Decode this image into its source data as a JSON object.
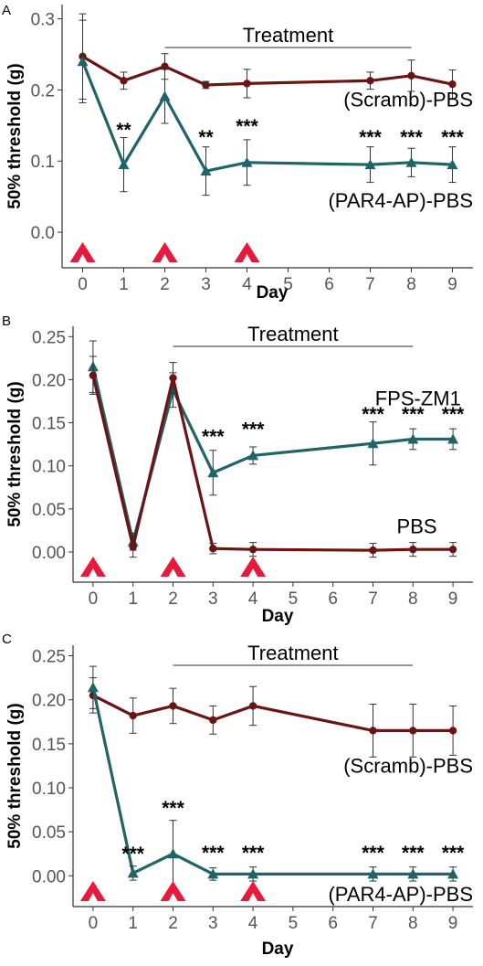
{
  "colors": {
    "series_dark_red": "#6b1414",
    "series_teal": "#1f6468",
    "arrow_red": "#e8193c",
    "axis": "#333333",
    "tick_text": "#555555"
  },
  "chart_data": [
    {
      "panel": "A",
      "type": "line",
      "xlabel": "Day",
      "ylabel": "50% threshold (g)",
      "x_ticks": [
        0,
        1,
        2,
        3,
        4,
        5,
        6,
        7,
        8,
        9
      ],
      "y_ticks": [
        0.0,
        0.1,
        0.2,
        0.3
      ],
      "y_tick_labels": [
        "0.0",
        "0.1",
        "0.2",
        "0.3"
      ],
      "xlim": [
        -0.5,
        9.5
      ],
      "ylim": [
        -0.05,
        0.32
      ],
      "treatment": {
        "label": "Treatment",
        "from": 2,
        "to": 8
      },
      "injection_days": [
        0,
        2,
        4
      ],
      "series": [
        {
          "name": "(Scramb)-PBS",
          "color": "#6b1414",
          "marker": "circle",
          "x": [
            0,
            1,
            2,
            3,
            4,
            7,
            8,
            9
          ],
          "y": [
            0.247,
            0.213,
            0.233,
            0.207,
            0.209,
            0.213,
            0.22,
            0.208
          ],
          "err": [
            0.06,
            0.012,
            0.018,
            0.005,
            0.02,
            0.012,
            0.022,
            0.02
          ],
          "label": "(Scramb)-PBS",
          "label_x": 9.5,
          "label_y": 0.177,
          "label_anchor": "end"
        },
        {
          "name": "(PAR4-AP)-PBS",
          "color": "#1f6468",
          "marker": "triangle",
          "x": [
            0,
            1,
            2,
            3,
            4,
            7,
            8,
            9
          ],
          "y": [
            0.24,
            0.095,
            0.191,
            0.086,
            0.098,
            0.095,
            0.098,
            0.095
          ],
          "err": [
            0.058,
            0.038,
            0.038,
            0.034,
            0.032,
            0.025,
            0.02,
            0.025
          ],
          "label": "(PAR4-AP)-PBS",
          "label_x": 9.5,
          "label_y": 0.035,
          "label_anchor": "end"
        }
      ],
      "annotations": [
        {
          "text": "**",
          "x": 1,
          "y": 0.135
        },
        {
          "text": "**",
          "x": 3,
          "y": 0.125
        },
        {
          "text": "***",
          "x": 4,
          "y": 0.14
        },
        {
          "text": "***",
          "x": 7,
          "y": 0.125
        },
        {
          "text": "***",
          "x": 8,
          "y": 0.125
        },
        {
          "text": "***",
          "x": 9,
          "y": 0.125
        }
      ]
    },
    {
      "panel": "B",
      "type": "line",
      "xlabel": "Day",
      "ylabel": "50% threshold (g)",
      "x_ticks": [
        0,
        1,
        2,
        3,
        4,
        5,
        6,
        7,
        8,
        9
      ],
      "y_ticks": [
        0.0,
        0.05,
        0.1,
        0.15,
        0.2,
        0.25
      ],
      "y_tick_labels": [
        "0.00",
        "0.05",
        "0.10",
        "0.15",
        "0.20",
        "0.25"
      ],
      "xlim": [
        -0.5,
        9.5
      ],
      "ylim": [
        -0.035,
        0.262
      ],
      "treatment": {
        "label": "Treatment",
        "from": 2,
        "to": 8
      },
      "injection_days": [
        0,
        2,
        4
      ],
      "series": [
        {
          "name": "FPS-ZM1",
          "color": "#1f6468",
          "marker": "triangle",
          "x": [
            0,
            1,
            2,
            3,
            4,
            7,
            8,
            9
          ],
          "y": [
            0.215,
            0.012,
            0.188,
            0.092,
            0.112,
            0.126,
            0.131,
            0.131
          ],
          "err": [
            0.03,
            0.01,
            0.02,
            0.026,
            0.01,
            0.025,
            0.012,
            0.012
          ],
          "label": "FPS-ZM1",
          "label_x": 9.2,
          "label_y": 0.17,
          "label_anchor": "end"
        },
        {
          "name": "PBS",
          "color": "#6b1414",
          "marker": "circle",
          "x": [
            0,
            1,
            2,
            3,
            4,
            7,
            8,
            9
          ],
          "y": [
            0.205,
            0.006,
            0.202,
            0.004,
            0.003,
            0.002,
            0.003,
            0.003
          ],
          "err": [
            0.022,
            0.012,
            0.018,
            0.006,
            0.008,
            0.008,
            0.008,
            0.008
          ],
          "label": "PBS",
          "label_x": 8.6,
          "label_y": 0.022,
          "label_anchor": "end"
        }
      ],
      "annotations": [
        {
          "text": "***",
          "x": 3,
          "y": 0.127
        },
        {
          "text": "***",
          "x": 4,
          "y": 0.135
        },
        {
          "text": "***",
          "x": 7,
          "y": 0.153
        },
        {
          "text": "***",
          "x": 8,
          "y": 0.153
        },
        {
          "text": "***",
          "x": 9,
          "y": 0.153
        }
      ]
    },
    {
      "panel": "C",
      "type": "line",
      "xlabel": "Day",
      "ylabel": "50% threshold (g)",
      "x_ticks": [
        0,
        1,
        2,
        3,
        4,
        5,
        6,
        7,
        8,
        9
      ],
      "y_ticks": [
        0.0,
        0.05,
        0.1,
        0.15,
        0.2,
        0.25
      ],
      "y_tick_labels": [
        "0.00",
        "0.05",
        "0.10",
        "0.15",
        "0.20",
        "0.25"
      ],
      "xlim": [
        -0.5,
        9.5
      ],
      "ylim": [
        -0.035,
        0.262
      ],
      "treatment": {
        "label": "Treatment",
        "from": 2,
        "to": 8
      },
      "injection_days": [
        0,
        2,
        4
      ],
      "series": [
        {
          "name": "(Scramb)-PBS",
          "color": "#6b1414",
          "marker": "circle",
          "x": [
            0,
            1,
            2,
            3,
            4,
            7,
            8,
            9
          ],
          "y": [
            0.205,
            0.182,
            0.193,
            0.177,
            0.193,
            0.165,
            0.165,
            0.165
          ],
          "err": [
            0.02,
            0.02,
            0.02,
            0.016,
            0.022,
            0.03,
            0.03,
            0.028
          ],
          "label": "(Scramb)-PBS",
          "label_x": 9.5,
          "label_y": 0.117,
          "label_anchor": "end"
        },
        {
          "name": "(PAR4-AP)-PBS",
          "color": "#1f6468",
          "marker": "triangle",
          "x": [
            0,
            1,
            2,
            3,
            4,
            7,
            8,
            9
          ],
          "y": [
            0.214,
            0.003,
            0.025,
            0.002,
            0.002,
            0.002,
            0.002,
            0.002
          ],
          "err": [
            0.024,
            0.008,
            0.038,
            0.007,
            0.008,
            0.008,
            0.008,
            0.008
          ],
          "label": "(PAR4-AP)-PBS",
          "label_x": 9.5,
          "label_y": -0.029,
          "label_anchor": "end"
        }
      ],
      "annotations": [
        {
          "text": "***",
          "x": 1,
          "y": 0.018
        },
        {
          "text": "***",
          "x": 2,
          "y": 0.07
        },
        {
          "text": "***",
          "x": 3,
          "y": 0.019
        },
        {
          "text": "***",
          "x": 4,
          "y": 0.019
        },
        {
          "text": "***",
          "x": 7,
          "y": 0.019
        },
        {
          "text": "***",
          "x": 8,
          "y": 0.019
        },
        {
          "text": "***",
          "x": 9,
          "y": 0.019
        }
      ]
    }
  ]
}
